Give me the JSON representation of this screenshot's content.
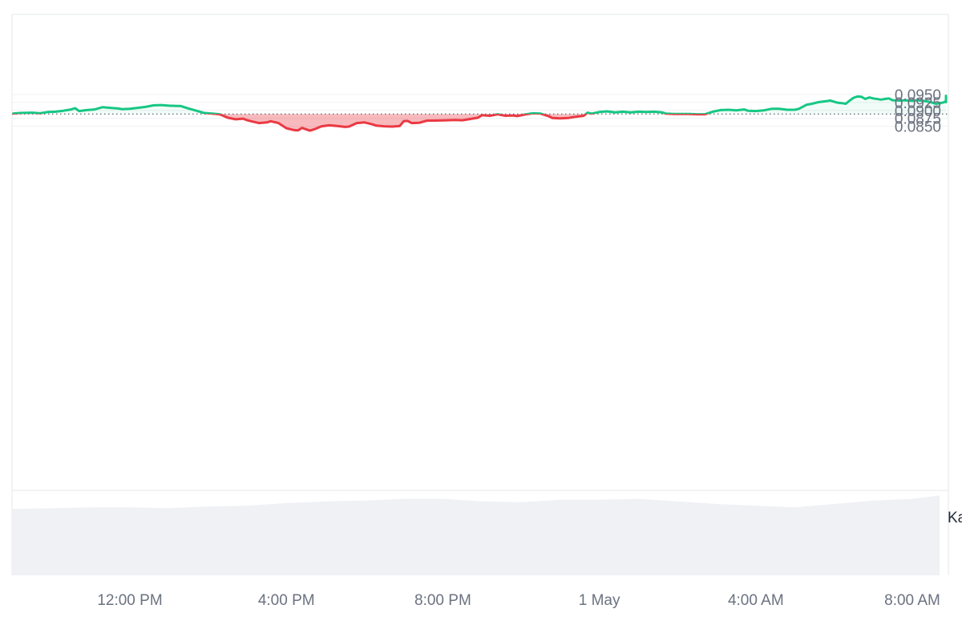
{
  "chart_data": {
    "type": "area",
    "baseline": 0.08887,
    "ylim": [
      0.0825,
      0.0975
    ],
    "y_ticks": [
      "0.0950",
      "0.0925",
      "0.0900",
      "0.0875",
      "0.0850"
    ],
    "y_tick_values": [
      0.095,
      0.0925,
      0.09,
      0.0875,
      0.085
    ],
    "x_ticks": [
      "12:00 PM",
      "4:00 PM",
      "8:00 PM",
      "1 May",
      "4:00 AM",
      "8:00 AM"
    ],
    "x_tick_hours": [
      12,
      16,
      20,
      24,
      28,
      32
    ],
    "x_range_hours": [
      9.0,
      33.0
    ],
    "edge_label": "Ka",
    "colors": {
      "up": "#16c784",
      "down": "#ea3943",
      "grid": "#eef0f3",
      "volume": "#eff1f5"
    },
    "price_series": [
      [
        9.0,
        0.089
      ],
      [
        9.2,
        0.0892
      ],
      [
        9.5,
        0.0893
      ],
      [
        9.7,
        0.0891
      ],
      [
        9.9,
        0.0895
      ],
      [
        10.1,
        0.0896
      ],
      [
        10.3,
        0.0899
      ],
      [
        10.5,
        0.0903
      ],
      [
        10.6,
        0.0907
      ],
      [
        10.7,
        0.0898
      ],
      [
        10.9,
        0.0901
      ],
      [
        11.1,
        0.0903
      ],
      [
        11.3,
        0.091
      ],
      [
        11.5,
        0.0908
      ],
      [
        11.7,
        0.0906
      ],
      [
        11.8,
        0.0904
      ],
      [
        12.0,
        0.0905
      ],
      [
        12.2,
        0.0908
      ],
      [
        12.4,
        0.0911
      ],
      [
        12.6,
        0.0916
      ],
      [
        12.8,
        0.0917
      ],
      [
        13.0,
        0.0915
      ],
      [
        13.2,
        0.0914
      ],
      [
        13.3,
        0.0914
      ],
      [
        13.5,
        0.0906
      ],
      [
        13.7,
        0.0899
      ],
      [
        13.9,
        0.0892
      ],
      [
        14.1,
        0.089
      ],
      [
        14.3,
        0.0888
      ],
      [
        14.5,
        0.0877
      ],
      [
        14.7,
        0.0872
      ],
      [
        14.9,
        0.0874
      ],
      [
        15.0,
        0.0869
      ],
      [
        15.1,
        0.0866
      ],
      [
        15.3,
        0.086
      ],
      [
        15.5,
        0.0862
      ],
      [
        15.6,
        0.0866
      ],
      [
        15.8,
        0.086
      ],
      [
        16.0,
        0.0844
      ],
      [
        16.2,
        0.0838
      ],
      [
        16.3,
        0.0837
      ],
      [
        16.4,
        0.0845
      ],
      [
        16.6,
        0.0836
      ],
      [
        16.7,
        0.084
      ],
      [
        16.9,
        0.085
      ],
      [
        17.1,
        0.0853
      ],
      [
        17.3,
        0.0851
      ],
      [
        17.5,
        0.0848
      ],
      [
        17.6,
        0.0849
      ],
      [
        17.8,
        0.086
      ],
      [
        18.0,
        0.0862
      ],
      [
        18.2,
        0.0856
      ],
      [
        18.3,
        0.0852
      ],
      [
        18.5,
        0.085
      ],
      [
        18.7,
        0.0849
      ],
      [
        18.9,
        0.0851
      ],
      [
        19.0,
        0.0866
      ],
      [
        19.1,
        0.0867
      ],
      [
        19.2,
        0.086
      ],
      [
        19.4,
        0.0861
      ],
      [
        19.6,
        0.0868
      ],
      [
        19.8,
        0.0868
      ],
      [
        20.1,
        0.0869
      ],
      [
        20.3,
        0.087
      ],
      [
        20.5,
        0.0869
      ],
      [
        20.7,
        0.0873
      ],
      [
        20.9,
        0.0877
      ],
      [
        21.0,
        0.0885
      ],
      [
        21.2,
        0.0883
      ],
      [
        21.4,
        0.0888
      ],
      [
        21.6,
        0.0883
      ],
      [
        21.8,
        0.0884
      ],
      [
        21.9,
        0.0882
      ],
      [
        22.1,
        0.0887
      ],
      [
        22.3,
        0.0891
      ],
      [
        22.5,
        0.089
      ],
      [
        22.7,
        0.0882
      ],
      [
        22.8,
        0.0876
      ],
      [
        23.0,
        0.0875
      ],
      [
        23.2,
        0.0876
      ],
      [
        23.4,
        0.088
      ],
      [
        23.6,
        0.0883
      ],
      [
        23.7,
        0.0893
      ],
      [
        23.8,
        0.089
      ],
      [
        24.0,
        0.0895
      ],
      [
        24.2,
        0.0897
      ],
      [
        24.4,
        0.0894
      ],
      [
        24.6,
        0.0896
      ],
      [
        24.8,
        0.0894
      ],
      [
        25.0,
        0.0896
      ],
      [
        25.2,
        0.0895
      ],
      [
        25.4,
        0.0896
      ],
      [
        25.6,
        0.0894
      ],
      [
        25.7,
        0.089
      ],
      [
        25.9,
        0.0889
      ],
      [
        26.1,
        0.0889
      ],
      [
        26.3,
        0.0889
      ],
      [
        26.5,
        0.0888
      ],
      [
        26.7,
        0.0888
      ],
      [
        26.9,
        0.0896
      ],
      [
        27.1,
        0.0901
      ],
      [
        27.3,
        0.0902
      ],
      [
        27.5,
        0.09
      ],
      [
        27.7,
        0.0903
      ],
      [
        27.8,
        0.0899
      ],
      [
        28.0,
        0.0898
      ],
      [
        28.2,
        0.09
      ],
      [
        28.4,
        0.0905
      ],
      [
        28.6,
        0.0905
      ],
      [
        28.8,
        0.0902
      ],
      [
        29.0,
        0.0902
      ],
      [
        29.1,
        0.0905
      ],
      [
        29.3,
        0.0918
      ],
      [
        29.4,
        0.092
      ],
      [
        29.6,
        0.0926
      ],
      [
        29.8,
        0.0929
      ],
      [
        29.9,
        0.0931
      ],
      [
        30.1,
        0.0924
      ],
      [
        30.2,
        0.0923
      ],
      [
        30.3,
        0.0921
      ],
      [
        30.4,
        0.0931
      ],
      [
        30.5,
        0.094
      ],
      [
        30.6,
        0.0944
      ],
      [
        30.7,
        0.0943
      ],
      [
        30.8,
        0.0936
      ],
      [
        30.9,
        0.0941
      ],
      [
        31.0,
        0.0938
      ],
      [
        31.2,
        0.0934
      ],
      [
        31.3,
        0.0936
      ],
      [
        31.4,
        0.0938
      ],
      [
        31.5,
        0.0932
      ],
      [
        31.7,
        0.0931
      ],
      [
        31.8,
        0.0932
      ],
      [
        32.0,
        0.093
      ],
      [
        32.1,
        0.0932
      ],
      [
        32.3,
        0.093
      ],
      [
        32.5,
        0.0925
      ],
      [
        32.6,
        0.0921
      ],
      [
        32.8,
        0.0925
      ],
      [
        33.0,
        0.093
      ],
      [
        33.2,
        0.0932
      ],
      [
        33.4,
        0.0937
      ],
      [
        33.5,
        0.094
      ],
      [
        33.7,
        0.0942
      ],
      [
        33.9,
        0.0946
      ],
      [
        34.1,
        0.0945
      ],
      [
        34.3,
        0.0946
      ],
      [
        34.4,
        0.0946
      ],
      [
        34.6,
        0.0939
      ],
      [
        34.8,
        0.0933
      ],
      [
        35.0,
        0.0932
      ],
      [
        35.2,
        0.0928
      ],
      [
        35.4,
        0.0926
      ],
      [
        35.6,
        0.0926
      ],
      [
        35.8,
        0.0931
      ],
      [
        35.9,
        0.0928
      ],
      [
        36.1,
        0.0932
      ],
      [
        36.3,
        0.0935
      ],
      [
        36.5,
        0.0937
      ],
      [
        36.7,
        0.0939
      ],
      [
        36.9,
        0.0941
      ]
    ],
    "volume_series": [
      [
        9.0,
        0.78
      ],
      [
        10.0,
        0.79
      ],
      [
        11.0,
        0.8
      ],
      [
        12.0,
        0.8
      ],
      [
        13.0,
        0.79
      ],
      [
        14.0,
        0.81
      ],
      [
        15.0,
        0.82
      ],
      [
        16.0,
        0.85
      ],
      [
        17.0,
        0.87
      ],
      [
        18.0,
        0.88
      ],
      [
        19.0,
        0.9
      ],
      [
        20.0,
        0.9
      ],
      [
        21.0,
        0.87
      ],
      [
        22.0,
        0.86
      ],
      [
        23.0,
        0.89
      ],
      [
        24.0,
        0.89
      ],
      [
        25.0,
        0.9
      ],
      [
        26.0,
        0.87
      ],
      [
        27.0,
        0.84
      ],
      [
        28.0,
        0.82
      ],
      [
        29.0,
        0.8
      ],
      [
        30.0,
        0.84
      ],
      [
        31.0,
        0.88
      ],
      [
        32.0,
        0.9
      ],
      [
        33.0,
        0.94
      ],
      [
        34.0,
        0.96
      ],
      [
        35.0,
        0.94
      ],
      [
        36.0,
        0.93
      ],
      [
        36.9,
        0.92
      ]
    ]
  }
}
